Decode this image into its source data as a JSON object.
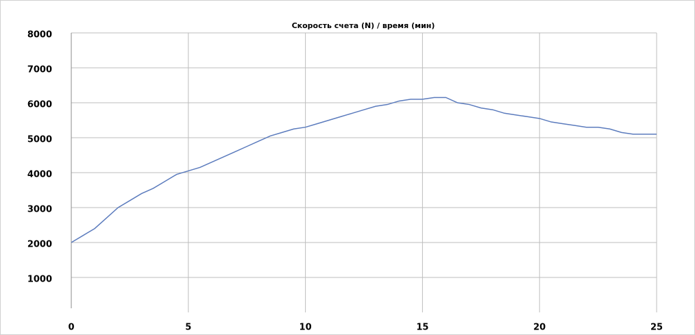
{
  "chart_data": {
    "type": "line",
    "title": "Скорость счета (N) / время (мин)",
    "x": [
      0,
      0.5,
      1,
      1.5,
      2,
      2.5,
      3,
      3.5,
      4,
      4.5,
      5,
      5.5,
      6,
      6.5,
      7,
      7.5,
      8,
      8.5,
      9,
      9.5,
      10,
      10.5,
      11,
      11.5,
      12,
      12.5,
      13,
      13.5,
      14,
      14.5,
      15,
      15.5,
      16,
      16.5,
      17,
      17.5,
      18,
      18.5,
      19,
      19.5,
      20,
      20.5,
      21,
      21.5,
      22,
      22.5,
      23,
      23.5,
      24,
      24.5,
      25
    ],
    "series": [
      {
        "name": "N",
        "color": "#5b7bbd",
        "values": [
          2000,
          2200,
          2400,
          2700,
          3000,
          3200,
          3400,
          3550,
          3750,
          3950,
          4050,
          4150,
          4300,
          4450,
          4600,
          4750,
          4900,
          5050,
          5150,
          5250,
          5300,
          5400,
          5500,
          5600,
          5700,
          5800,
          5900,
          5950,
          6050,
          6100,
          6100,
          6150,
          6150,
          6000,
          5950,
          5850,
          5800,
          5700,
          5650,
          5600,
          5550,
          5450,
          5400,
          5350,
          5300,
          5300,
          5250,
          5150,
          5100,
          5100,
          5100
        ]
      }
    ],
    "xlim": [
      0,
      25
    ],
    "xticks": [
      0,
      5,
      10,
      15,
      20,
      25
    ],
    "ylim": [
      0,
      8000
    ],
    "yticks": [
      1000,
      2000,
      3000,
      4000,
      5000,
      6000,
      7000,
      8000
    ],
    "grid": true
  }
}
